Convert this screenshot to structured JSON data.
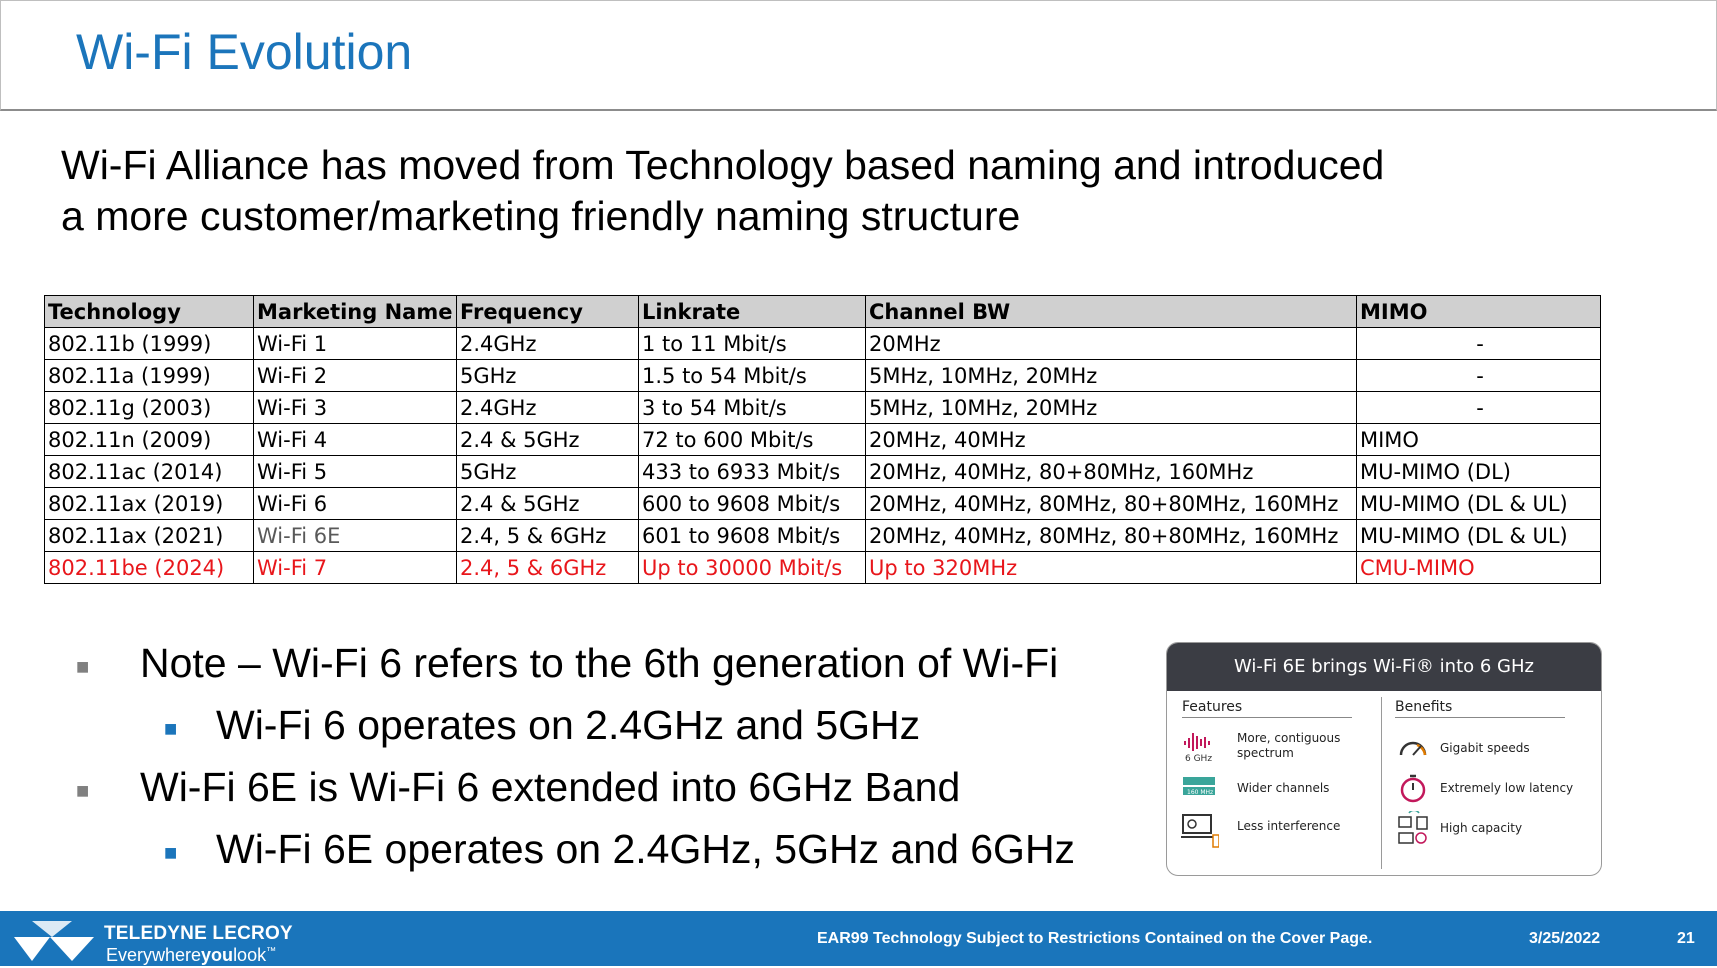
{
  "title": "Wi-Fi Evolution",
  "intro": {
    "line1": "Wi-Fi Alliance has moved from Technology based naming and introduced",
    "line2": "a more customer/marketing friendly naming structure"
  },
  "table": {
    "headers": [
      "Technology",
      "Marketing Name",
      "Frequency",
      "Linkrate",
      "Channel BW",
      "MIMO"
    ],
    "rows": [
      [
        "802.11b (1999)",
        "Wi-Fi 1",
        "2.4GHz",
        "1 to 11 Mbit/s",
        "20MHz",
        "-"
      ],
      [
        "802.11a (1999)",
        "Wi-Fi 2",
        "5GHz",
        "1.5 to 54 Mbit/s",
        "5MHz, 10MHz, 20MHz",
        "-"
      ],
      [
        "802.11g (2003)",
        "Wi-Fi 3",
        "2.4GHz",
        "3 to 54 Mbit/s",
        "5MHz, 10MHz, 20MHz",
        "-"
      ],
      [
        "802.11n (2009)",
        "Wi-Fi 4",
        "2.4 & 5GHz",
        "72 to 600 Mbit/s",
        "20MHz, 40MHz",
        "MIMO"
      ],
      [
        "802.11ac (2014)",
        "Wi-Fi 5",
        "5GHz",
        "433 to 6933 Mbit/s",
        "20MHz, 40MHz, 80+80MHz, 160MHz",
        "MU-MIMO (DL)"
      ],
      [
        "802.11ax (2019)",
        "Wi-Fi 6",
        "2.4 & 5GHz",
        "600 to 9608 Mbit/s",
        "20MHz, 40MHz, 80MHz, 80+80MHz, 160MHz",
        "MU-MIMO (DL & UL)"
      ],
      [
        "802.11ax (2021)",
        "Wi-Fi 6E",
        "2.4, 5 & 6GHz",
        "601 to 9608 Mbit/s",
        "20MHz, 40MHz, 80MHz, 80+80MHz, 160MHz",
        "MU-MIMO (DL & UL)"
      ],
      [
        "802.11be (2024)",
        "Wi-Fi 7",
        "2.4, 5 & 6GHz",
        "Up to 30000 Mbit/s",
        "Up to 320MHz",
        "CMU-MIMO"
      ]
    ],
    "highlight_color": "#e8161b"
  },
  "notes": [
    {
      "level": 1,
      "text": "Note – Wi-Fi 6 refers to the 6th generation of Wi-Fi"
    },
    {
      "level": 2,
      "text": "Wi-Fi 6 operates on 2.4GHz and 5GHz"
    },
    {
      "level": 1,
      "text": "Wi-Fi 6E is Wi-Fi 6 extended into 6GHz Band"
    },
    {
      "level": 2,
      "text": "Wi-Fi 6E operates on 2.4GHz, 5GHz and 6GHz"
    }
  ],
  "card": {
    "title": "Wi-Fi 6E brings Wi-Fi® into 6 GHz",
    "features_label": "Features",
    "benefits_label": "Benefits",
    "features": [
      {
        "icon": "spectrum-icon",
        "icon_text": "6 GHz",
        "text": "More, contiguous spectrum"
      },
      {
        "icon": "channels-icon",
        "icon_text": "160 MHz",
        "text": "Wider channels"
      },
      {
        "icon": "interference-icon",
        "text": "Less interference"
      }
    ],
    "benefits": [
      {
        "icon": "speedometer-icon",
        "text": "Gigabit speeds"
      },
      {
        "icon": "stopwatch-icon",
        "text": "Extremely low latency"
      },
      {
        "icon": "devices-icon",
        "text": "High capacity"
      }
    ]
  },
  "footer": {
    "brand": "TELEDYNE LECROY",
    "tagline_prefix": "Everywhere",
    "tagline_bold": "you",
    "tagline_suffix": "look",
    "tagline_mark": "™",
    "notice": "EAR99 Technology Subject to Restrictions Contained on the Cover Page.",
    "date": "3/25/2022",
    "page": "21",
    "bg_color": "#1a75bb"
  },
  "colors": {
    "title": "#1b75bb",
    "accent_bullet": "#1b75bb",
    "gray_bullet": "#808080"
  }
}
